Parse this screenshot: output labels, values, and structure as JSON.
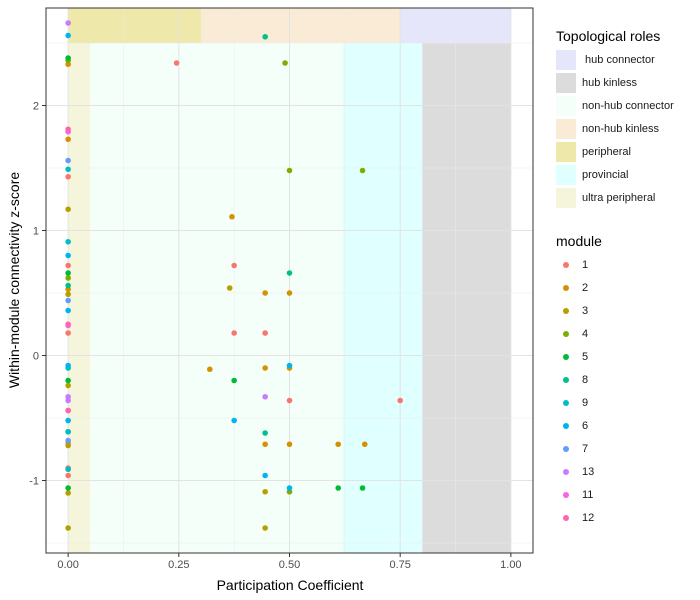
{
  "chart_data": {
    "type": "scatter",
    "xlabel": "Participation Coefficient",
    "ylabel": "Within-module connectivity z-score",
    "xlim": [
      -0.05,
      1.05
    ],
    "ylim": [
      -1.58,
      2.78
    ],
    "xticks": [
      0,
      0.25,
      0.5,
      0.75,
      1.0
    ],
    "xtick_labels": [
      "0.00",
      "0.25",
      "0.50",
      "0.75",
      "1.00"
    ],
    "yticks": [
      -1,
      0,
      1,
      2
    ],
    "ytick_labels": [
      "-1",
      "0",
      "1",
      "2"
    ],
    "grid": true,
    "legend_placement": "right",
    "regions_title": "Topological roles",
    "regions": [
      {
        "name": "ultra peripheral",
        "x": [
          0,
          0.05
        ],
        "y": [
          -1.58,
          2.5
        ],
        "color": "#f5f5dc"
      },
      {
        "name": "peripheral",
        "x": [
          0,
          0.3
        ],
        "y": [
          2.5,
          2.78
        ],
        "color": "#eee8aa"
      },
      {
        "name": "non-hub connector",
        "x": [
          0.05,
          0.62
        ],
        "y": [
          -1.58,
          2.5
        ],
        "color": "#f5fffa"
      },
      {
        "name": "provincial",
        "x": [
          0.62,
          0.8
        ],
        "y": [
          -1.58,
          2.5
        ],
        "color": "#e0ffff"
      },
      {
        "name": "non-hub kinless",
        "x": [
          0.3,
          0.75
        ],
        "y": [
          2.5,
          2.78
        ],
        "color": "#faebd7"
      },
      {
        "name": "hub kinless",
        "x": [
          0.8,
          1.0
        ],
        "y": [
          -1.58,
          2.5
        ],
        "color": "#dcdcdc"
      },
      {
        "name": " hub connector",
        "x": [
          0.75,
          1.0
        ],
        "y": [
          2.5,
          2.78
        ],
        "color": "#e6e6fa"
      }
    ],
    "role_legend": [
      {
        "name": " hub connector",
        "color": "#e6e6fa"
      },
      {
        "name": "hub kinless",
        "color": "#dcdcdc"
      },
      {
        "name": "non-hub connector",
        "color": "#f5fffa"
      },
      {
        "name": "non-hub kinless",
        "color": "#faebd7"
      },
      {
        "name": "peripheral",
        "color": "#eee8aa"
      },
      {
        "name": "provincial",
        "color": "#e0ffff"
      },
      {
        "name": "ultra peripheral",
        "color": "#f5f5dc"
      }
    ],
    "module_title": "module",
    "series": [
      {
        "name": "1",
        "color": "#f8766d",
        "points": [
          [
            0.245,
            2.34
          ],
          [
            0.375,
            0.72
          ],
          [
            0.375,
            0.18
          ],
          [
            0.445,
            0.18
          ],
          [
            0.5,
            -0.36
          ],
          [
            0.75,
            -0.36
          ],
          [
            0,
            0.72
          ],
          [
            0,
            0.18
          ],
          [
            0,
            1.43
          ],
          [
            0,
            -0.9
          ],
          [
            0,
            -0.96
          ],
          [
            0,
            -0.7
          ]
        ]
      },
      {
        "name": "2",
        "color": "#d39200",
        "points": [
          [
            0.37,
            1.11
          ],
          [
            0.445,
            0.5
          ],
          [
            0.5,
            0.5
          ],
          [
            0.445,
            -0.71
          ],
          [
            0.5,
            -0.71
          ],
          [
            0.61,
            -0.71
          ],
          [
            0.67,
            -0.71
          ],
          [
            0.32,
            -0.11
          ],
          [
            0.445,
            -0.1
          ],
          [
            0.5,
            -0.1
          ],
          [
            0,
            0.53
          ],
          [
            0,
            2.33
          ],
          [
            0,
            1.73
          ]
        ]
      },
      {
        "name": "3",
        "color": "#b79f00",
        "points": [
          [
            0.365,
            0.54
          ],
          [
            0.445,
            -1.09
          ],
          [
            0.445,
            -1.38
          ],
          [
            0,
            -1.38
          ],
          [
            0,
            1.17
          ],
          [
            0,
            -0.72
          ],
          [
            0,
            -0.24
          ],
          [
            0,
            0.49
          ],
          [
            0,
            -1.1
          ]
        ]
      },
      {
        "name": "4",
        "color": "#7cae00",
        "points": [
          [
            0.49,
            2.34
          ],
          [
            0.5,
            1.48
          ],
          [
            0.665,
            1.48
          ],
          [
            0.5,
            -1.09
          ],
          [
            0,
            0.62
          ],
          [
            0,
            2.36
          ]
        ]
      },
      {
        "name": "5",
        "color": "#00ba38",
        "points": [
          [
            0.375,
            -0.2
          ],
          [
            0.61,
            -1.06
          ],
          [
            0.665,
            -1.06
          ],
          [
            0,
            -0.2
          ],
          [
            0,
            -0.61
          ],
          [
            0,
            -1.06
          ],
          [
            0,
            2.38
          ],
          [
            0,
            0.66
          ]
        ]
      },
      {
        "name": "8",
        "color": "#00c08b",
        "points": [
          [
            0.445,
            2.55
          ],
          [
            0.5,
            0.66
          ],
          [
            0.445,
            -0.62
          ],
          [
            0,
            0.56
          ]
        ]
      },
      {
        "name": "9",
        "color": "#00bfc4",
        "points": [
          [
            0,
            1.49
          ],
          [
            0,
            0.91
          ],
          [
            0,
            -0.91
          ],
          [
            0,
            -0.61
          ],
          [
            0,
            -0.1
          ]
        ]
      },
      {
        "name": "6",
        "color": "#00b4f0",
        "points": [
          [
            0.5,
            -0.08
          ],
          [
            0.375,
            -0.52
          ],
          [
            0.445,
            -0.96
          ],
          [
            0.5,
            -1.06
          ],
          [
            0,
            2.56
          ],
          [
            0,
            0.8
          ],
          [
            0,
            0.36
          ],
          [
            0,
            -0.52
          ],
          [
            0,
            -0.08
          ]
        ]
      },
      {
        "name": "7",
        "color": "#619cff",
        "points": [
          [
            0,
            0.44
          ],
          [
            0,
            -0.68
          ],
          [
            0,
            1.56
          ]
        ]
      },
      {
        "name": "13",
        "color": "#c77cff",
        "points": [
          [
            0.445,
            -0.33
          ],
          [
            0,
            2.66
          ],
          [
            0,
            -0.33
          ],
          [
            0,
            -0.36
          ]
        ]
      },
      {
        "name": "11",
        "color": "#f564e3",
        "points": [
          [
            0,
            1.79
          ],
          [
            0,
            -0.44
          ],
          [
            0,
            0.24
          ]
        ]
      },
      {
        "name": "12",
        "color": "#ff64b0",
        "points": [
          [
            0,
            1.81
          ],
          [
            0,
            0.25
          ],
          [
            0,
            -0.44
          ]
        ]
      }
    ]
  }
}
